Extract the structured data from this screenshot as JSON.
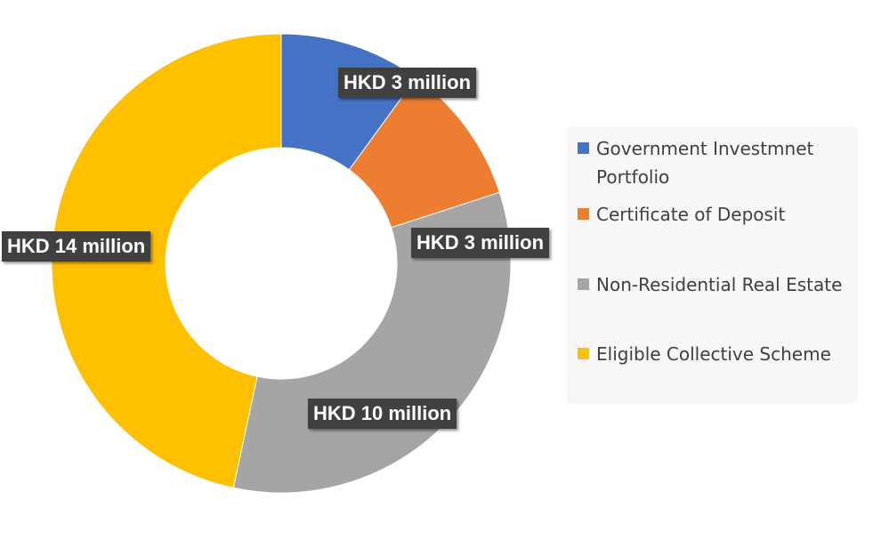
{
  "chart_data": {
    "type": "pie",
    "donut": true,
    "title": "",
    "legend_position": "right",
    "series": [
      {
        "categories": [
          "Government Investmnet Portfolio",
          "Certificate of Deposit",
          "Non-Residential Real Estate",
          "Eligible Collective Scheme"
        ],
        "values": [
          3,
          3,
          10,
          14
        ],
        "unit": "HKD million",
        "data_labels": [
          "HKD 3 million",
          "HKD 3 million",
          "HKD 10 million",
          "HKD 14 million"
        ],
        "colors": [
          "#4472c4",
          "#ed7d31",
          "#a5a5a5",
          "#ffc000"
        ]
      }
    ]
  },
  "legend": {
    "items": [
      {
        "label": "Government Investmnet Portfolio",
        "color": "#4472c4"
      },
      {
        "label": "Certificate of Deposit",
        "color": "#ed7d31"
      },
      {
        "label": "Non-Residential Real Estate",
        "color": "#a5a5a5"
      },
      {
        "label": "Eligible Collective Scheme",
        "color": "#ffc000"
      }
    ]
  }
}
